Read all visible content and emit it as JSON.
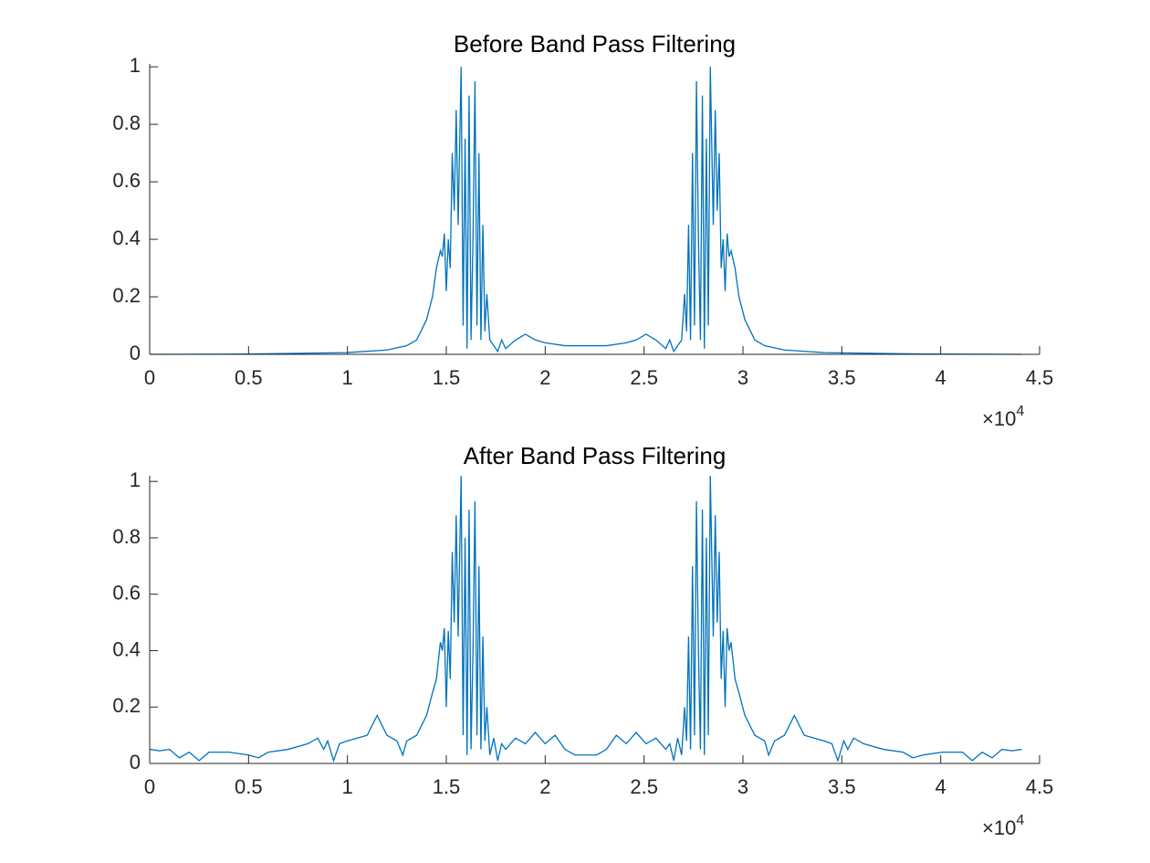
{
  "chart_data": [
    {
      "type": "line",
      "title": "Before Band Pass Filtering",
      "x": [
        0,
        0.5,
        1.0,
        1.2,
        1.3,
        1.35,
        1.4,
        1.43,
        1.45,
        1.47,
        1.48,
        1.49,
        1.5,
        1.51,
        1.52,
        1.53,
        1.54,
        1.55,
        1.56,
        1.575,
        1.585,
        1.595,
        1.605,
        1.615,
        1.625,
        1.635,
        1.645,
        1.655,
        1.665,
        1.675,
        1.685,
        1.695,
        1.705,
        1.72,
        1.74,
        1.76,
        1.78,
        1.8,
        1.85,
        1.9,
        1.95,
        2.0,
        2.1,
        2.205,
        2.31,
        2.41,
        2.46,
        2.51,
        2.56,
        2.61,
        2.63,
        2.65,
        2.67,
        2.69,
        2.705,
        2.715,
        2.725,
        2.735,
        2.745,
        2.755,
        2.765,
        2.775,
        2.785,
        2.795,
        2.805,
        2.815,
        2.825,
        2.835,
        2.85,
        2.86,
        2.87,
        2.88,
        2.89,
        2.9,
        2.91,
        2.92,
        2.93,
        2.94,
        2.96,
        2.98,
        3.01,
        3.06,
        3.11,
        3.21,
        3.41,
        3.91,
        4.41
      ],
      "series": [
        {
          "color": "#0072bd",
          "values": [
            0,
            0.001,
            0.006,
            0.015,
            0.03,
            0.05,
            0.12,
            0.2,
            0.3,
            0.36,
            0.34,
            0.42,
            0.22,
            0.4,
            0.3,
            0.7,
            0.5,
            0.85,
            0.45,
            1.0,
            0.1,
            0.75,
            0.02,
            0.9,
            0.05,
            0.4,
            0.95,
            0.1,
            0.7,
            0.05,
            0.45,
            0.08,
            0.21,
            0.05,
            0.03,
            0.01,
            0.05,
            0.02,
            0.05,
            0.07,
            0.05,
            0.04,
            0.03,
            0.03,
            0.03,
            0.04,
            0.05,
            0.07,
            0.05,
            0.02,
            0.05,
            0.01,
            0.03,
            0.05,
            0.21,
            0.08,
            0.45,
            0.05,
            0.7,
            0.1,
            0.95,
            0.4,
            0.05,
            0.9,
            0.02,
            0.75,
            0.1,
            1.0,
            0.45,
            0.85,
            0.5,
            0.7,
            0.3,
            0.4,
            0.22,
            0.42,
            0.34,
            0.36,
            0.3,
            0.2,
            0.12,
            0.05,
            0.03,
            0.015,
            0.006,
            0.001,
            0
          ]
        }
      ],
      "xlim": [
        0,
        4.5
      ],
      "xticks": [
        0,
        0.5,
        1,
        1.5,
        2,
        2.5,
        3,
        3.5,
        4,
        4.5
      ],
      "ylim": [
        0,
        1.01
      ],
      "yticks": [
        0,
        0.2,
        0.4,
        0.6,
        0.8,
        1
      ],
      "x_scale": "×10",
      "x_scale_exponent": "4"
    },
    {
      "type": "line",
      "title": "After Band Pass Filtering",
      "x": [
        0,
        0.05,
        0.1,
        0.15,
        0.2,
        0.25,
        0.3,
        0.4,
        0.5,
        0.55,
        0.6,
        0.7,
        0.8,
        0.85,
        0.88,
        0.9,
        0.93,
        0.96,
        1.0,
        1.05,
        1.1,
        1.15,
        1.2,
        1.25,
        1.28,
        1.3,
        1.35,
        1.4,
        1.43,
        1.45,
        1.47,
        1.48,
        1.49,
        1.5,
        1.51,
        1.52,
        1.53,
        1.54,
        1.55,
        1.56,
        1.575,
        1.585,
        1.595,
        1.605,
        1.615,
        1.625,
        1.635,
        1.645,
        1.655,
        1.665,
        1.675,
        1.685,
        1.695,
        1.705,
        1.72,
        1.74,
        1.76,
        1.78,
        1.8,
        1.85,
        1.9,
        1.95,
        2.0,
        2.05,
        2.1,
        2.15,
        2.205,
        2.26,
        2.31,
        2.36,
        2.41,
        2.46,
        2.51,
        2.56,
        2.61,
        2.63,
        2.65,
        2.67,
        2.69,
        2.705,
        2.715,
        2.725,
        2.735,
        2.745,
        2.755,
        2.765,
        2.775,
        2.785,
        2.795,
        2.805,
        2.815,
        2.825,
        2.835,
        2.85,
        2.86,
        2.87,
        2.88,
        2.89,
        2.9,
        2.91,
        2.92,
        2.93,
        2.94,
        2.96,
        2.98,
        3.01,
        3.06,
        3.11,
        3.13,
        3.16,
        3.21,
        3.26,
        3.31,
        3.36,
        3.41,
        3.45,
        3.48,
        3.51,
        3.53,
        3.56,
        3.61,
        3.71,
        3.81,
        3.86,
        3.91,
        4.01,
        4.11,
        4.16,
        4.21,
        4.26,
        4.31,
        4.36,
        4.41
      ],
      "series": [
        {
          "color": "#0072bd",
          "values": [
            0.05,
            0.045,
            0.05,
            0.02,
            0.04,
            0.01,
            0.04,
            0.04,
            0.03,
            0.02,
            0.04,
            0.05,
            0.07,
            0.09,
            0.05,
            0.08,
            0.01,
            0.07,
            0.08,
            0.09,
            0.1,
            0.17,
            0.1,
            0.08,
            0.03,
            0.08,
            0.1,
            0.17,
            0.25,
            0.3,
            0.43,
            0.4,
            0.48,
            0.2,
            0.47,
            0.3,
            0.75,
            0.5,
            0.88,
            0.45,
            1.02,
            0.1,
            0.8,
            0.03,
            0.9,
            0.05,
            0.4,
            0.93,
            0.1,
            0.7,
            0.05,
            0.45,
            0.08,
            0.2,
            0.03,
            0.09,
            0.01,
            0.07,
            0.05,
            0.09,
            0.07,
            0.11,
            0.07,
            0.1,
            0.05,
            0.03,
            0.03,
            0.03,
            0.05,
            0.1,
            0.07,
            0.11,
            0.07,
            0.09,
            0.05,
            0.07,
            0.01,
            0.09,
            0.03,
            0.2,
            0.08,
            0.45,
            0.05,
            0.7,
            0.1,
            0.93,
            0.4,
            0.05,
            0.9,
            0.03,
            0.8,
            0.1,
            1.02,
            0.45,
            0.88,
            0.5,
            0.75,
            0.3,
            0.47,
            0.2,
            0.48,
            0.4,
            0.43,
            0.3,
            0.25,
            0.17,
            0.1,
            0.08,
            0.03,
            0.08,
            0.1,
            0.17,
            0.1,
            0.09,
            0.08,
            0.07,
            0.01,
            0.08,
            0.05,
            0.09,
            0.07,
            0.05,
            0.04,
            0.02,
            0.03,
            0.04,
            0.04,
            0.01,
            0.04,
            0.02,
            0.05,
            0.045,
            0.05
          ]
        }
      ],
      "xlim": [
        0,
        4.5
      ],
      "xticks": [
        0,
        0.5,
        1,
        1.5,
        2,
        2.5,
        3,
        3.5,
        4,
        4.5
      ],
      "ylim": [
        0,
        1.02
      ],
      "yticks": [
        0,
        0.2,
        0.4,
        0.6,
        0.8,
        1
      ],
      "x_scale": "×10",
      "x_scale_exponent": "4"
    }
  ]
}
